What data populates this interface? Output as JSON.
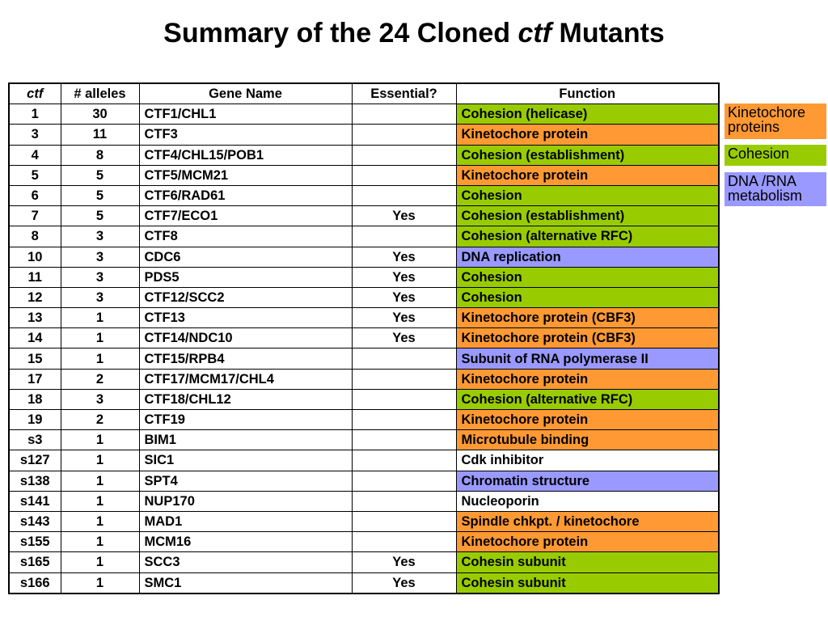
{
  "title": {
    "prefix": "Summary of the 24 Cloned ",
    "italic": "ctf",
    "suffix": " Mutants"
  },
  "colors": {
    "kinetochore": "#ff9933",
    "cohesion": "#99cc00",
    "dna_rna": "#9999ff",
    "none": "#ffffff"
  },
  "table": {
    "headers": [
      "ctf",
      "# alleles",
      "Gene Name",
      "Essential?",
      "Function"
    ],
    "rows": [
      {
        "ctf": "1",
        "alleles": "30",
        "gene": "CTF1/CHL1",
        "essential": "",
        "function": "Cohesion (helicase)",
        "category": "coh"
      },
      {
        "ctf": "3",
        "alleles": "11",
        "gene": "CTF3",
        "essential": "",
        "function": "Kinetochore protein",
        "category": "kin"
      },
      {
        "ctf": "4",
        "alleles": "8",
        "gene": "CTF4/CHL15/POB1",
        "essential": "",
        "function": "Cohesion (establishment)",
        "category": "coh"
      },
      {
        "ctf": "5",
        "alleles": "5",
        "gene": "CTF5/MCM21",
        "essential": "",
        "function": "Kinetochore protein",
        "category": "kin"
      },
      {
        "ctf": "6",
        "alleles": "5",
        "gene": "CTF6/RAD61",
        "essential": "",
        "function": "Cohesion",
        "category": "coh"
      },
      {
        "ctf": "7",
        "alleles": "5",
        "gene": "CTF7/ECO1",
        "essential": "Yes",
        "function": "Cohesion (establishment)",
        "category": "coh"
      },
      {
        "ctf": "8",
        "alleles": "3",
        "gene": "CTF8",
        "essential": "",
        "function": "Cohesion (alternative RFC)",
        "category": "coh"
      },
      {
        "ctf": "10",
        "alleles": "3",
        "gene": "CDC6",
        "essential": "Yes",
        "function": "DNA replication",
        "category": "dna"
      },
      {
        "ctf": "11",
        "alleles": "3",
        "gene": "PDS5",
        "essential": "Yes",
        "function": "Cohesion",
        "category": "coh"
      },
      {
        "ctf": "12",
        "alleles": "3",
        "gene": "CTF12/SCC2",
        "essential": "Yes",
        "function": "Cohesion",
        "category": "coh"
      },
      {
        "ctf": "13",
        "alleles": "1",
        "gene": "CTF13",
        "essential": "Yes",
        "function": "Kinetochore protein (CBF3)",
        "category": "kin"
      },
      {
        "ctf": "14",
        "alleles": "1",
        "gene": "CTF14/NDC10",
        "essential": "Yes",
        "function": "Kinetochore protein (CBF3)",
        "category": "kin"
      },
      {
        "ctf": "15",
        "alleles": "1",
        "gene": "CTF15/RPB4",
        "essential": "",
        "function": "Subunit of RNA polymerase II",
        "category": "dna"
      },
      {
        "ctf": "17",
        "alleles": "2",
        "gene": "CTF17/MCM17/CHL4",
        "essential": "",
        "function": "Kinetochore protein",
        "category": "kin"
      },
      {
        "ctf": "18",
        "alleles": "3",
        "gene": "CTF18/CHL12",
        "essential": "",
        "function": "Cohesion (alternative RFC)",
        "category": "coh"
      },
      {
        "ctf": "19",
        "alleles": "2",
        "gene": "CTF19",
        "essential": "",
        "function": "Kinetochore protein",
        "category": "kin"
      },
      {
        "ctf": "s3",
        "alleles": "1",
        "gene": "BIM1",
        "essential": "",
        "function": "Microtubule binding",
        "category": "kin"
      },
      {
        "ctf": "s127",
        "alleles": "1",
        "gene": "SIC1",
        "essential": "",
        "function": "Cdk inhibitor",
        "category": "none"
      },
      {
        "ctf": "s138",
        "alleles": "1",
        "gene": "SPT4",
        "essential": "",
        "function": "Chromatin structure",
        "category": "dna"
      },
      {
        "ctf": "s141",
        "alleles": "1",
        "gene": "NUP170",
        "essential": "",
        "function": "Nucleoporin",
        "category": "none"
      },
      {
        "ctf": "s143",
        "alleles": "1",
        "gene": "MAD1",
        "essential": "",
        "function": "Spindle chkpt. / kinetochore",
        "category": "kin"
      },
      {
        "ctf": "s155",
        "alleles": "1",
        "gene": "MCM16",
        "essential": "",
        "function": "Kinetochore protein",
        "category": "kin"
      },
      {
        "ctf": "s165",
        "alleles": "1",
        "gene": "SCC3",
        "essential": "Yes",
        "function": "Cohesin subunit",
        "category": "coh"
      },
      {
        "ctf": "s166",
        "alleles": "1",
        "gene": "SMC1",
        "essential": "Yes",
        "function": "Cohesin subunit",
        "category": "coh"
      }
    ]
  },
  "legend": {
    "kinetochore": {
      "line1": "Kinetochore",
      "line2": "proteins"
    },
    "cohesion": {
      "line1": "Cohesion"
    },
    "dna_rna": {
      "line1": "DNA /RNA",
      "line2": "metabolism"
    }
  }
}
